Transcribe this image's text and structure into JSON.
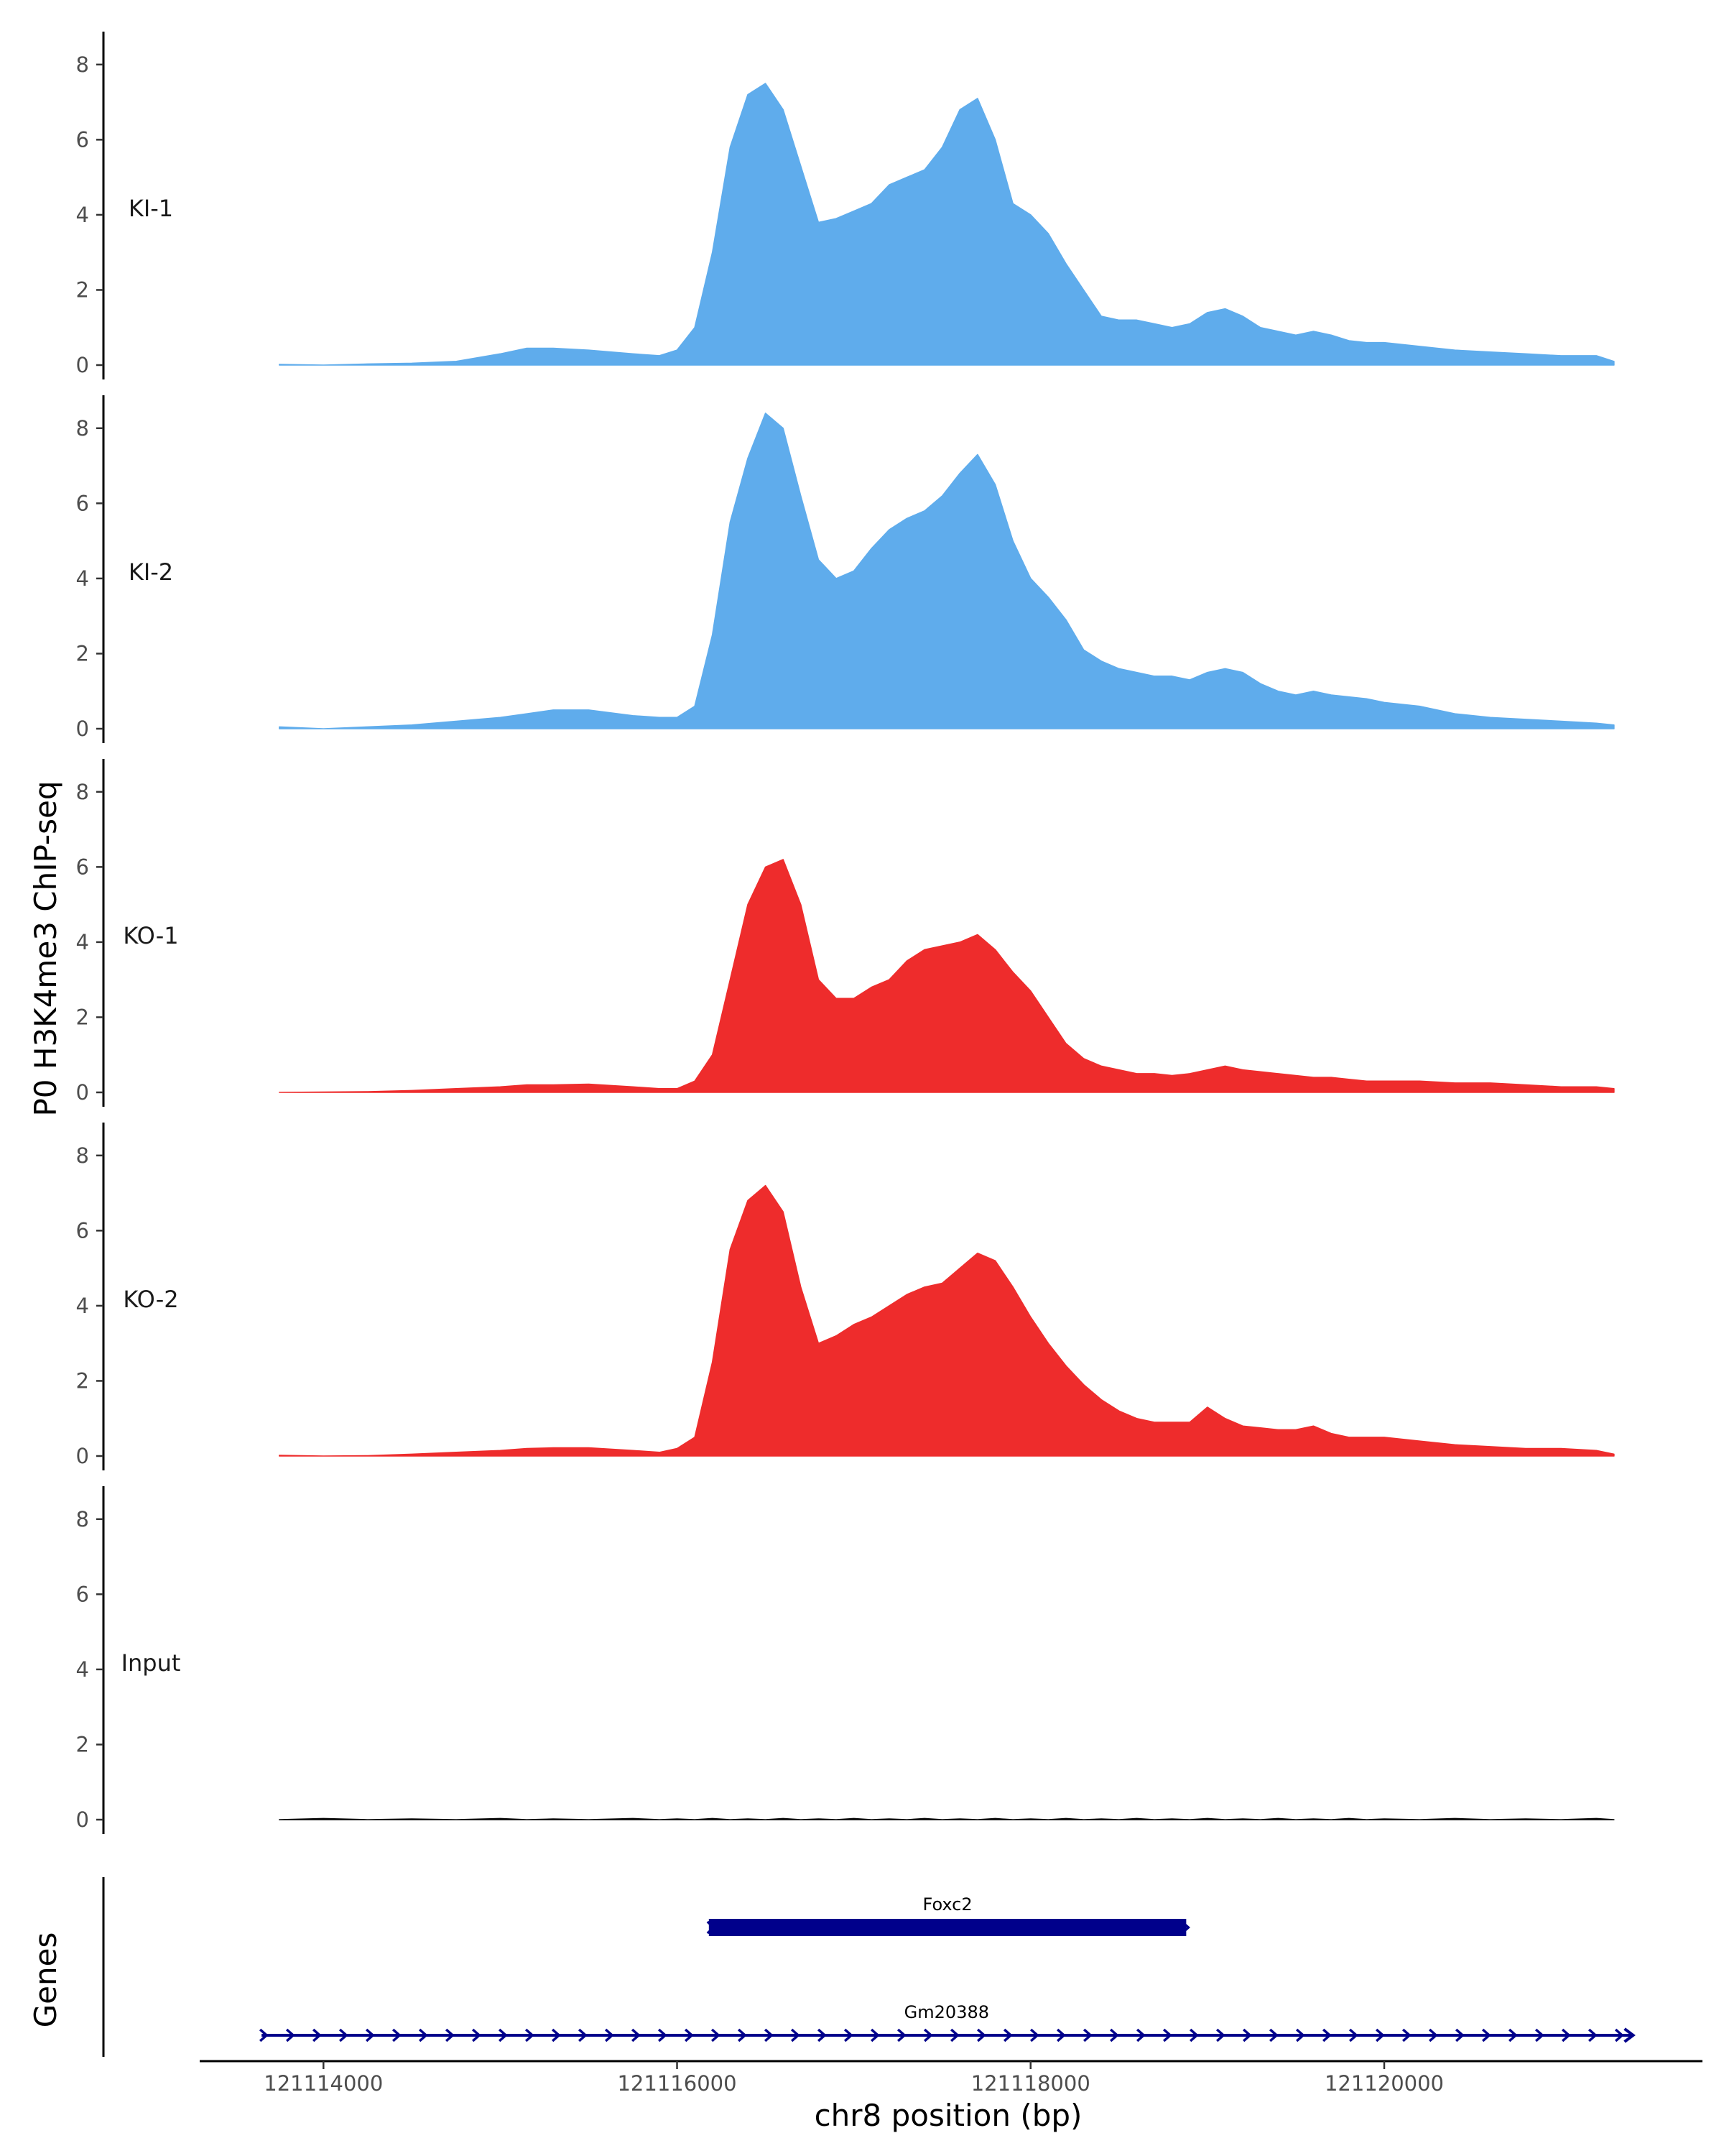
{
  "chart_data": {
    "type": "area",
    "ylabel": "P0 H3K4me3 ChIP-seq",
    "xlabel": "chr8 position (bp)",
    "genes_label": "Genes",
    "xlim": [
      121113300,
      121121800
    ],
    "ylim": [
      0,
      8.8
    ],
    "y_ticks": [
      "0",
      "2",
      "4",
      "6",
      "8"
    ],
    "x_ticks": [
      {
        "value": 121114000,
        "label": "121114000"
      },
      {
        "value": 121116000,
        "label": "121116000"
      },
      {
        "value": 121118000,
        "label": "121118000"
      },
      {
        "value": 121120000,
        "label": "121120000"
      }
    ],
    "x": [
      121113750,
      121114000,
      121114250,
      121114500,
      121114750,
      121115000,
      121115150,
      121115300,
      121115500,
      121115750,
      121115900,
      121116000,
      121116100,
      121116200,
      121116300,
      121116400,
      121116500,
      121116600,
      121116700,
      121116800,
      121116900,
      121117000,
      121117100,
      121117200,
      121117300,
      121117400,
      121117500,
      121117600,
      121117700,
      121117800,
      121117900,
      121118000,
      121118100,
      121118200,
      121118300,
      121118400,
      121118500,
      121118600,
      121118700,
      121118800,
      121118900,
      121119000,
      121119100,
      121119200,
      121119300,
      121119400,
      121119500,
      121119600,
      121119700,
      121119800,
      121119900,
      121120000,
      121120200,
      121120400,
      121120600,
      121120800,
      121121000,
      121121200,
      121121300
    ],
    "series": [
      {
        "name": "KI-1",
        "color": "#5FACEC",
        "values": [
          0.02,
          0.0,
          0.03,
          0.05,
          0.1,
          0.3,
          0.45,
          0.45,
          0.4,
          0.3,
          0.25,
          0.4,
          1.0,
          3.0,
          5.8,
          7.2,
          7.5,
          6.8,
          5.3,
          3.8,
          3.9,
          4.1,
          4.3,
          4.8,
          5.0,
          5.2,
          5.8,
          6.8,
          7.1,
          6.0,
          4.3,
          4.0,
          3.5,
          2.7,
          2.0,
          1.3,
          1.2,
          1.2,
          1.1,
          1.0,
          1.1,
          1.4,
          1.5,
          1.3,
          1.0,
          0.9,
          0.8,
          0.9,
          0.8,
          0.65,
          0.6,
          0.6,
          0.5,
          0.4,
          0.35,
          0.3,
          0.25,
          0.25,
          0.1
        ]
      },
      {
        "name": "KI-2",
        "color": "#5FACEC",
        "values": [
          0.05,
          0.0,
          0.05,
          0.1,
          0.2,
          0.3,
          0.4,
          0.5,
          0.5,
          0.35,
          0.3,
          0.3,
          0.6,
          2.5,
          5.5,
          7.2,
          8.4,
          8.0,
          6.2,
          4.5,
          4.0,
          4.2,
          4.8,
          5.3,
          5.6,
          5.8,
          6.2,
          6.8,
          7.3,
          6.5,
          5.0,
          4.0,
          3.5,
          2.9,
          2.1,
          1.8,
          1.6,
          1.5,
          1.4,
          1.4,
          1.3,
          1.5,
          1.6,
          1.5,
          1.2,
          1.0,
          0.9,
          1.0,
          0.9,
          0.85,
          0.8,
          0.7,
          0.6,
          0.4,
          0.3,
          0.25,
          0.2,
          0.15,
          0.1
        ]
      },
      {
        "name": "KO-1",
        "color": "#EE2C2C",
        "values": [
          0.0,
          0.01,
          0.02,
          0.05,
          0.1,
          0.15,
          0.2,
          0.2,
          0.22,
          0.15,
          0.1,
          0.1,
          0.3,
          1.0,
          3.0,
          5.0,
          6.0,
          6.2,
          5.0,
          3.0,
          2.5,
          2.5,
          2.8,
          3.0,
          3.5,
          3.8,
          3.9,
          4.0,
          4.2,
          3.8,
          3.2,
          2.7,
          2.0,
          1.3,
          0.9,
          0.7,
          0.6,
          0.5,
          0.5,
          0.45,
          0.5,
          0.6,
          0.7,
          0.6,
          0.55,
          0.5,
          0.45,
          0.4,
          0.4,
          0.35,
          0.3,
          0.3,
          0.3,
          0.25,
          0.25,
          0.2,
          0.15,
          0.15,
          0.1
        ]
      },
      {
        "name": "KO-2",
        "color": "#EE2C2C",
        "values": [
          0.02,
          0.0,
          0.01,
          0.05,
          0.1,
          0.15,
          0.2,
          0.22,
          0.22,
          0.15,
          0.1,
          0.2,
          0.5,
          2.5,
          5.5,
          6.8,
          7.2,
          6.5,
          4.5,
          3.0,
          3.2,
          3.5,
          3.7,
          4.0,
          4.3,
          4.5,
          4.6,
          5.0,
          5.4,
          5.2,
          4.5,
          3.7,
          3.0,
          2.4,
          1.9,
          1.5,
          1.2,
          1.0,
          0.9,
          0.9,
          0.9,
          1.3,
          1.0,
          0.8,
          0.75,
          0.7,
          0.7,
          0.8,
          0.6,
          0.5,
          0.5,
          0.5,
          0.4,
          0.3,
          0.25,
          0.2,
          0.2,
          0.15,
          0.05
        ]
      },
      {
        "name": "Input",
        "color": "#000000",
        "values": [
          0.0,
          0.03,
          0.0,
          0.02,
          0.0,
          0.03,
          0.0,
          0.02,
          0.0,
          0.03,
          0.0,
          0.02,
          0.0,
          0.03,
          0.0,
          0.02,
          0.0,
          0.03,
          0.0,
          0.02,
          0.0,
          0.03,
          0.0,
          0.02,
          0.0,
          0.03,
          0.0,
          0.02,
          0.0,
          0.03,
          0.0,
          0.02,
          0.0,
          0.03,
          0.0,
          0.02,
          0.0,
          0.03,
          0.0,
          0.02,
          0.0,
          0.03,
          0.0,
          0.02,
          0.0,
          0.03,
          0.0,
          0.02,
          0.0,
          0.03,
          0.0,
          0.02,
          0.0,
          0.03,
          0.0,
          0.02,
          0.0,
          0.03,
          0.0
        ]
      }
    ],
    "genes": [
      {
        "name": "Foxc2",
        "start": 121116180,
        "end": 121118880,
        "strand": "+",
        "color": "#00008B",
        "type": "block"
      },
      {
        "name": "Gm20388",
        "start": 121113650,
        "end": 121121400,
        "strand": "+",
        "color": "#00008B",
        "type": "line"
      }
    ]
  }
}
